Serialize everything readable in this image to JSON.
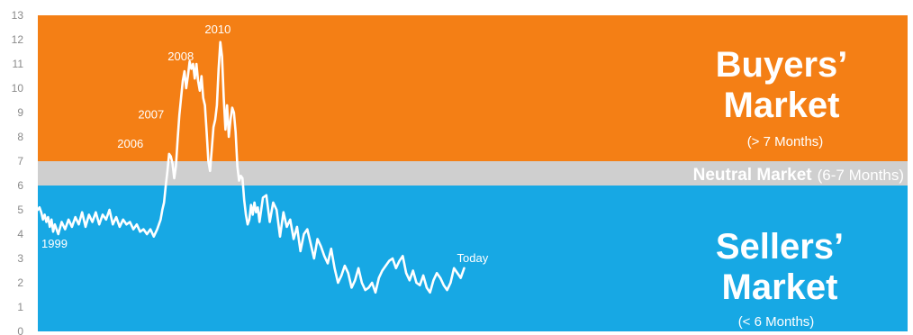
{
  "chart_data": {
    "type": "line",
    "ylim": [
      0,
      13
    ],
    "yticks": [
      "0",
      "1",
      "2",
      "3",
      "4",
      "5",
      "6",
      "7",
      "8",
      "9",
      "10",
      "11",
      "12",
      "13"
    ],
    "zones": [
      {
        "name": "buyers",
        "from": 7,
        "to": 13,
        "color": "#f47f15"
      },
      {
        "name": "neutral",
        "from": 6,
        "to": 7,
        "color": "#cfcfcf"
      },
      {
        "name": "sellers",
        "from": 0,
        "to": 6,
        "color": "#17a8e4"
      }
    ],
    "line_color": "#ffffff",
    "series": [
      {
        "x": [
          1999.0,
          1999.1,
          1999.2,
          1999.3,
          1999.4,
          1999.5,
          1999.6,
          1999.7,
          1999.8,
          1999.9,
          2000.0,
          2000.2,
          2000.4,
          2000.6,
          2000.8,
          2001.0,
          2001.2,
          2001.4,
          2001.6,
          2001.8,
          2002.0,
          2002.2,
          2002.4,
          2002.6,
          2002.8,
          2003.0,
          2003.2,
          2003.4,
          2003.6,
          2003.8,
          2004.0,
          2004.2,
          2004.4,
          2004.6,
          2004.8,
          2005.0,
          2005.2,
          2005.4,
          2005.6,
          2005.8,
          2006.0,
          2006.1,
          2006.2,
          2006.3,
          2006.4,
          2006.5,
          2006.6,
          2006.7,
          2006.8,
          2006.9,
          2007.0,
          2007.1,
          2007.2,
          2007.3,
          2007.4,
          2007.5,
          2007.6,
          2007.7,
          2007.8,
          2007.9,
          2008.0,
          2008.1,
          2008.2,
          2008.3,
          2008.4,
          2008.5,
          2008.6,
          2008.7,
          2008.8,
          2008.9,
          2009.0,
          2009.1,
          2009.2,
          2009.3,
          2009.4,
          2009.5,
          2009.6,
          2009.7,
          2009.8,
          2009.9,
          2010.0,
          2010.1,
          2010.2,
          2010.3,
          2010.4,
          2010.5,
          2010.6,
          2010.7,
          2010.8,
          2010.9,
          2011.0,
          2011.1,
          2011.2,
          2011.3,
          2011.4,
          2011.5,
          2011.6,
          2011.7,
          2011.8,
          2011.9,
          2012.0,
          2012.2,
          2012.4,
          2012.6,
          2012.8,
          2013.0,
          2013.2,
          2013.4,
          2013.6,
          2013.8,
          2014.0,
          2014.2,
          2014.4,
          2014.6,
          2014.8,
          2015.0,
          2015.2,
          2015.4,
          2015.6,
          2015.8,
          2016.0,
          2016.2,
          2016.4,
          2016.6,
          2016.8,
          2017.0,
          2017.2,
          2017.4,
          2017.6,
          2017.8,
          2018.0,
          2018.2,
          2018.4,
          2018.6,
          2018.8,
          2019.0,
          2019.2,
          2019.4,
          2019.6,
          2019.8,
          2020.0,
          2020.2,
          2020.4,
          2020.6,
          2020.8,
          2021.0,
          2021.2,
          2021.4,
          2021.6,
          2021.8,
          2022.0,
          2022.2,
          2022.4,
          2022.6,
          2022.8,
          2023.0,
          2023.2,
          2023.4,
          2023.6,
          2023.8,
          2024.0
        ],
        "y": [
          5.0,
          5.1,
          4.9,
          4.6,
          4.8,
          4.5,
          4.7,
          4.3,
          4.6,
          4.1,
          4.4,
          4.0,
          4.5,
          4.2,
          4.6,
          4.3,
          4.7,
          4.4,
          4.9,
          4.3,
          4.8,
          4.5,
          4.9,
          4.4,
          4.8,
          4.6,
          5.0,
          4.4,
          4.7,
          4.3,
          4.6,
          4.4,
          4.5,
          4.2,
          4.4,
          4.1,
          4.2,
          4.0,
          4.2,
          3.9,
          4.2,
          4.4,
          4.6,
          5.0,
          5.3,
          6.0,
          6.6,
          7.3,
          7.2,
          6.9,
          6.3,
          6.8,
          7.9,
          8.9,
          9.6,
          10.3,
          10.7,
          10.0,
          10.5,
          11.1,
          10.8,
          11.0,
          10.4,
          11.0,
          10.3,
          9.9,
          10.5,
          9.6,
          9.3,
          8.2,
          7.0,
          6.6,
          7.5,
          8.4,
          8.7,
          9.3,
          10.8,
          11.9,
          11.3,
          9.6,
          8.3,
          9.3,
          8.0,
          8.7,
          9.2,
          9.0,
          8.2,
          6.8,
          6.2,
          6.4,
          6.3,
          5.4,
          4.8,
          4.4,
          4.6,
          5.2,
          4.8,
          5.3,
          4.9,
          5.1,
          4.5,
          5.5,
          5.6,
          4.5,
          5.3,
          5.0,
          3.9,
          4.9,
          4.3,
          4.6,
          3.8,
          4.3,
          3.3,
          4.0,
          4.2,
          3.6,
          3.0,
          3.8,
          3.5,
          3.1,
          2.8,
          3.4,
          2.6,
          2.0,
          2.3,
          2.7,
          2.4,
          1.8,
          2.1,
          2.6,
          2.0,
          1.7,
          1.8,
          2.0,
          1.6,
          2.2,
          2.5,
          2.7,
          2.9,
          3.0,
          2.6,
          2.9,
          3.1,
          2.4,
          2.1,
          2.5,
          2.0,
          1.9,
          2.3,
          1.8,
          1.6,
          2.1,
          2.4,
          2.2,
          1.9,
          1.7,
          2.0,
          2.6,
          2.4,
          2.2,
          2.6
        ]
      }
    ],
    "annotations": [
      {
        "text": "1999",
        "x": 1999.0,
        "y": 3.6
      },
      {
        "text": "2006",
        "x": 2006.3,
        "y": 7.7
      },
      {
        "text": "2007",
        "x": 2007.2,
        "y": 8.9
      },
      {
        "text": "2008",
        "x": 2008.2,
        "y": 11.3
      },
      {
        "text": "2010",
        "x": 2009.95,
        "y": 12.4
      },
      {
        "text": "Today",
        "x": 2024.0,
        "y": 3.0
      }
    ]
  },
  "labels": {
    "buyers_title_1": "Buyers’",
    "buyers_title_2": "Market",
    "buyers_sub": "(> 7 Months)",
    "neutral_title": "Neutral Market",
    "neutral_sub": "(6-7 Months)",
    "sellers_title_1": "Sellers’",
    "sellers_title_2": "Market",
    "sellers_sub": "(< 6 Months)"
  }
}
